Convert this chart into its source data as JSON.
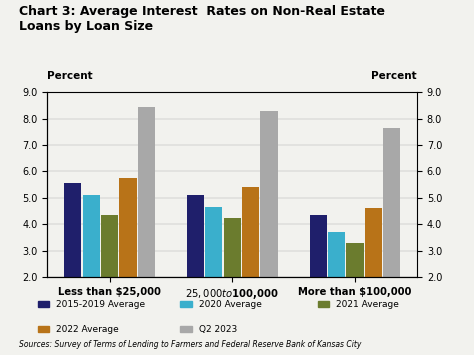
{
  "title_line1": "Chart 3: Average Interest  Rates on Non-Real Estate",
  "title_line2": "Loans by Loan Size",
  "categories": [
    "Less than $25,000",
    "$25,000 to $100,000",
    "More than $100,000"
  ],
  "series_order": [
    "2015-2019 Average",
    "2020 Average",
    "2021 Average",
    "2022 Average",
    "Q2 2023"
  ],
  "series": {
    "2015-2019 Average": [
      5.55,
      5.1,
      4.35
    ],
    "2020 Average": [
      5.1,
      4.65,
      3.7
    ],
    "2021 Average": [
      4.35,
      4.25,
      3.3
    ],
    "2022 Average": [
      5.75,
      5.4,
      4.6
    ],
    "Q2 2023": [
      8.45,
      8.3,
      7.65
    ]
  },
  "colors": {
    "2015-2019 Average": "#1f1f6b",
    "2020 Average": "#3aafcc",
    "2021 Average": "#6b7c2e",
    "2022 Average": "#b87318",
    "Q2 2023": "#a8a8a8"
  },
  "ylim": [
    2.0,
    9.0
  ],
  "yticks": [
    2.0,
    3.0,
    4.0,
    5.0,
    6.0,
    7.0,
    8.0,
    9.0
  ],
  "ylabel": "Percent",
  "source": "Sources: Survey of Terms of Lending to Farmers and Federal Reserve Bank of Kansas City",
  "background_color": "#f2f2ee"
}
